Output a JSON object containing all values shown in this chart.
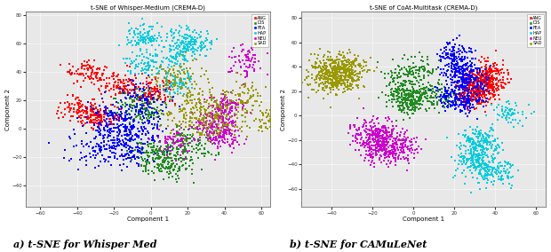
{
  "plot1_title": "t-SNE of Whisper-Medium (CREMA-D)",
  "plot2_title": "t-SNE of CoAt-Multitask (CREMA-D)",
  "xlabel": "Component 1",
  "ylabel": "Component 2",
  "caption1": "a) t-SNE for Whisper Med",
  "caption2": "b) t-SNE for CAMuLeNet",
  "classes": [
    "ANG",
    "DIS",
    "FEA",
    "HAP",
    "NEU",
    "SAD"
  ],
  "colors": [
    "#ff0000",
    "#228B22",
    "#0000ff",
    "#00ccdd",
    "#cc00cc",
    "#999900"
  ],
  "plot1_xlim": [
    -68,
    65
  ],
  "plot1_ylim": [
    -55,
    82
  ],
  "plot2_xlim": [
    -55,
    65
  ],
  "plot2_ylim": [
    -75,
    85
  ],
  "plot1_xticks": [
    -60,
    -40,
    -20,
    0,
    20,
    40,
    60
  ],
  "plot1_yticks": [
    -40,
    -20,
    0,
    20,
    40,
    60,
    80
  ],
  "plot2_xticks": [
    -40,
    -20,
    0,
    20,
    40,
    60
  ],
  "plot2_yticks": [
    -60,
    -40,
    -20,
    0,
    20,
    40,
    60,
    80
  ],
  "n_per_class": 500,
  "marker_size": 3,
  "background_color": "#ffffff",
  "axes_bg": "#e8e8e8"
}
